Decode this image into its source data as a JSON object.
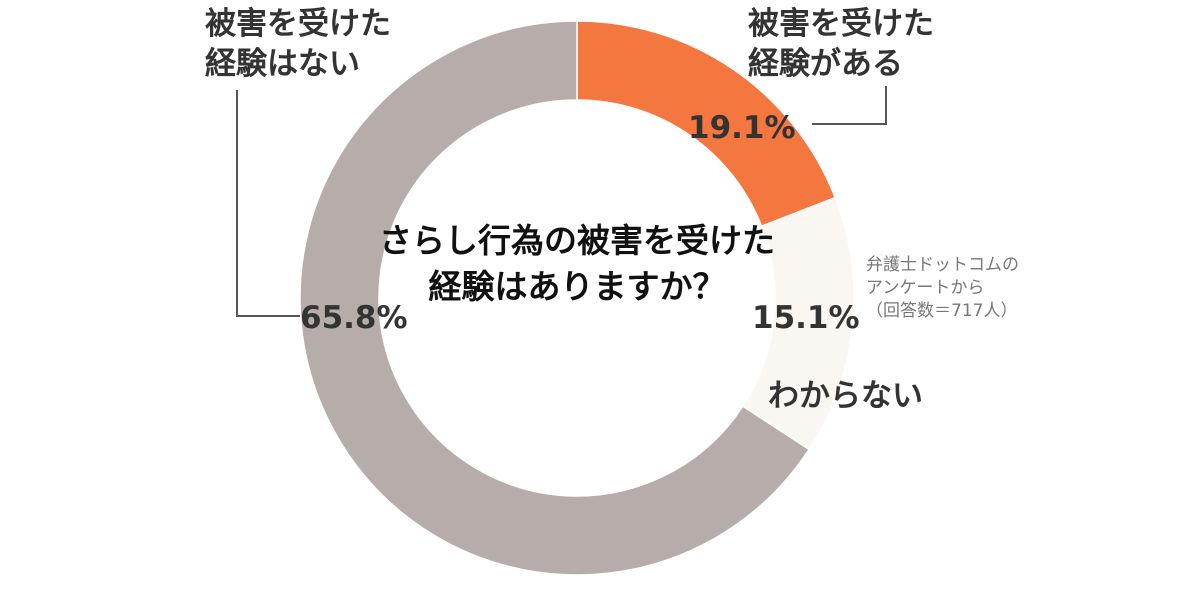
{
  "chart_data": {
    "type": "pie",
    "title": "さらし行為の被害を受けた経験はありますか？",
    "note": [
      "弁護士ドットコムの",
      "アンケートから",
      "（回答数＝717人）"
    ],
    "slices": [
      {
        "label": [
          "被害を受けた",
          "経験がある"
        ],
        "value": 19.1,
        "display": "19.1%",
        "color": "#f47740"
      },
      {
        "label": [
          "わからない"
        ],
        "value": 15.1,
        "display": "15.1%",
        "color": "#faf6f2"
      },
      {
        "label": [
          "被害を受けた",
          "経験はない"
        ],
        "value": 65.8,
        "display": "65.8%",
        "color": "#b6acaa"
      }
    ],
    "start": "top",
    "direction": "clockwise",
    "donut": true
  }
}
